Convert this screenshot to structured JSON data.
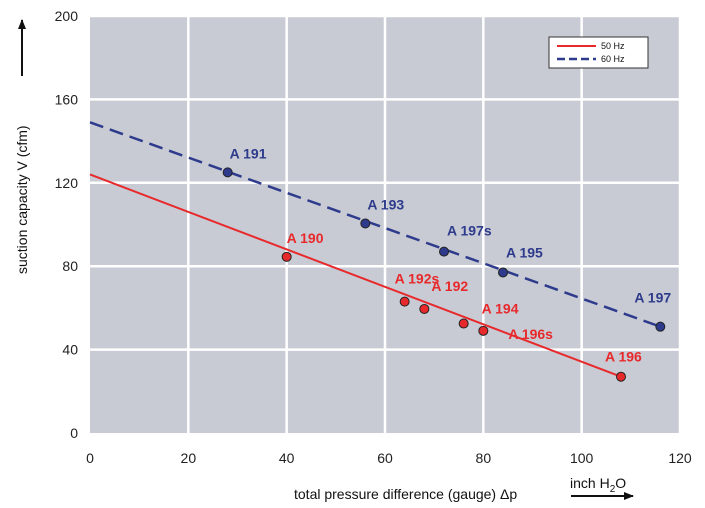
{
  "chart_data": {
    "type": "line",
    "xlabel": "total pressure difference (gauge)  Δp",
    "x_unit": {
      "main": "inch H",
      "sub": "2",
      "tail": "O"
    },
    "ylabel": "suction capacity  V (cfm)",
    "xlim": [
      0,
      120
    ],
    "ylim": [
      0,
      200
    ],
    "x_ticks": [
      0,
      20,
      40,
      60,
      80,
      100,
      120
    ],
    "y_ticks": [
      0,
      40,
      80,
      120,
      160,
      200
    ],
    "grid": true,
    "background": "#c8cbd3",
    "legend_position": "top-right",
    "series": [
      {
        "name": "50 Hz",
        "color": "#e8292b",
        "dash": false,
        "line": [
          [
            0,
            124
          ],
          [
            108,
            27
          ]
        ],
        "points": [
          {
            "label": "A 190",
            "x": 40,
            "y": 84.5
          },
          {
            "label": "A 192s",
            "x": 64,
            "y": 63
          },
          {
            "label": "A 192",
            "x": 68,
            "y": 59.5
          },
          {
            "label": "A 194",
            "x": 76,
            "y": 52.5
          },
          {
            "label": "A 196s",
            "x": 80,
            "y": 49
          },
          {
            "label": "A 196",
            "x": 108,
            "y": 27
          }
        ]
      },
      {
        "name": "60 Hz",
        "color": "#2e3b8c",
        "dash": true,
        "line": [
          [
            0,
            149
          ],
          [
            116,
            51
          ]
        ],
        "points": [
          {
            "label": "A 191",
            "x": 28,
            "y": 125
          },
          {
            "label": "A 193",
            "x": 56,
            "y": 100.5
          },
          {
            "label": "A 197s",
            "x": 72,
            "y": 87
          },
          {
            "label": "A 195",
            "x": 84,
            "y": 77
          },
          {
            "label": "A 197",
            "x": 116,
            "y": 51
          }
        ]
      }
    ]
  }
}
